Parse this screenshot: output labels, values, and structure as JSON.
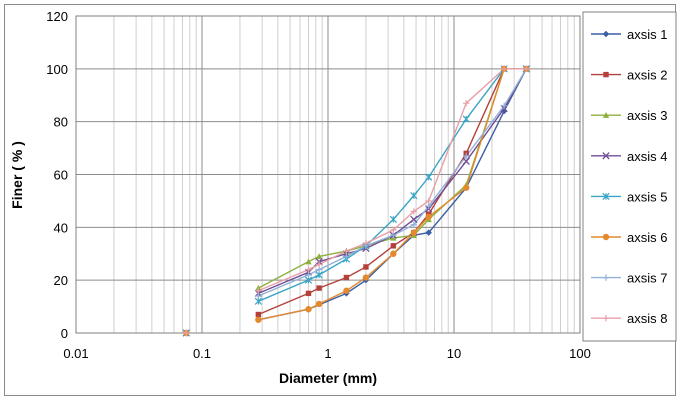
{
  "chart_data": {
    "type": "scatter",
    "xlabel": "Diameter (mm)",
    "ylabel": "Finer ( % )",
    "x_scale": "log",
    "xlim": [
      0.01,
      100
    ],
    "ylim": [
      0,
      120
    ],
    "x_ticks": [
      "0.01",
      "0.1",
      "1",
      "10",
      "100"
    ],
    "y_ticks": [
      "0",
      "20",
      "40",
      "60",
      "80",
      "100",
      "120"
    ],
    "grid": true,
    "legend_position": "right",
    "series": [
      {
        "name": "axsis 1",
        "color": "#3b5ea6",
        "marker": "diamond",
        "x": [
          0.075,
          0.28,
          0.7,
          1.4,
          2,
          3.3,
          4.8,
          6.3,
          12.5,
          25,
          37.5
        ],
        "y": [
          0,
          5,
          9,
          15,
          20,
          30,
          37,
          38,
          55,
          84,
          100
        ]
      },
      {
        "name": "axsis 2",
        "color": "#b5403b",
        "marker": "square",
        "x": [
          0.075,
          0.28,
          0.7,
          0.85,
          1.4,
          2,
          3.3,
          4.8,
          6.3,
          12.5,
          25,
          37.5
        ],
        "y": [
          0,
          7,
          15,
          17,
          21,
          25,
          33,
          38,
          45,
          68,
          100,
          100
        ]
      },
      {
        "name": "axsis 3",
        "color": "#8fb03f",
        "marker": "triangle",
        "x": [
          0.075,
          0.28,
          0.7,
          0.85,
          1.4,
          2,
          3.3,
          4.8,
          6.3,
          12.5,
          25,
          37.5
        ],
        "y": [
          0,
          17,
          27,
          29,
          31,
          33,
          36,
          37,
          43,
          56,
          100,
          100
        ]
      },
      {
        "name": "axsis 4",
        "color": "#6f4f96",
        "marker": "x",
        "x": [
          0.075,
          0.28,
          0.7,
          0.85,
          1.4,
          2,
          3.3,
          4.8,
          6.3,
          12.5,
          25,
          37.5
        ],
        "y": [
          0,
          15,
          23,
          27,
          30,
          32,
          37,
          43,
          47,
          65,
          85,
          100
        ]
      },
      {
        "name": "axsis 5",
        "color": "#3aa5c6",
        "marker": "star",
        "x": [
          0.075,
          0.28,
          0.7,
          0.85,
          1.4,
          2,
          3.3,
          4.8,
          6.3,
          12.5,
          25,
          37.5
        ],
        "y": [
          0,
          12,
          20,
          22,
          28,
          33,
          43,
          52,
          59,
          81,
          100,
          100
        ]
      },
      {
        "name": "axsis 6",
        "color": "#e48a2e",
        "marker": "circle",
        "x": [
          0.075,
          0.28,
          0.7,
          0.85,
          1.4,
          2,
          3.3,
          4.8,
          6.3,
          12.5,
          25,
          37.5
        ],
        "y": [
          0,
          5,
          9,
          11,
          16,
          21,
          30,
          38,
          44,
          55,
          100,
          100
        ]
      },
      {
        "name": "axsis 7",
        "color": "#92b1d8",
        "marker": "plus",
        "x": [
          0.075,
          0.28,
          0.7,
          0.85,
          1.4,
          2,
          3.3,
          4.8,
          6.3,
          12.5,
          25,
          37.5
        ],
        "y": [
          0,
          14,
          22,
          24,
          29,
          33,
          37,
          41,
          48,
          67,
          86,
          100
        ]
      },
      {
        "name": "axsis 8",
        "color": "#e8a0a8",
        "marker": "plus",
        "x": [
          0.075,
          0.28,
          0.7,
          0.85,
          1.4,
          2,
          3.3,
          4.8,
          6.3,
          12.5,
          25,
          37.5
        ],
        "y": [
          0,
          16,
          24,
          26,
          31,
          34,
          39,
          46,
          50,
          87,
          100,
          100
        ]
      }
    ]
  }
}
